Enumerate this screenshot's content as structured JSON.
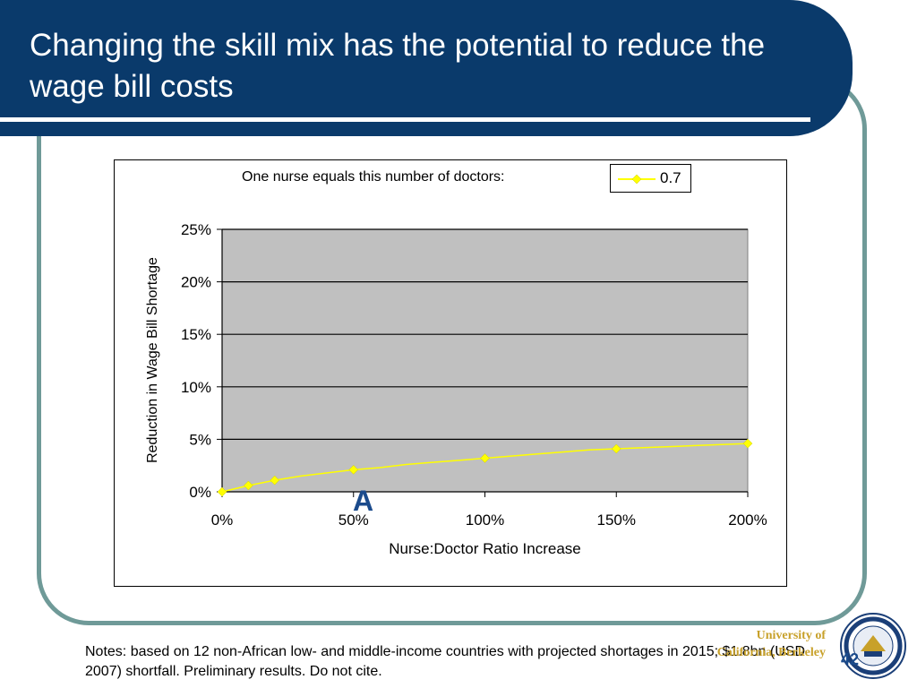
{
  "slide": {
    "title": "Changing the skill mix has the potential to reduce the wage bill costs",
    "notes": "Notes: based on 12 non-African low- and middle-income countries with projected shortages in 2015; $1.8bn (USD 2007) shortfall. Preliminary results. Do not cite.",
    "annotation_letter": "A",
    "page_number": "42",
    "university_name": [
      "University of",
      "California, Berkeley"
    ],
    "colors": {
      "title_bar": "#0a3a6b",
      "frame": "#6f9a98",
      "series": "#ffff00",
      "plot_background": "#c0c0c0",
      "university_text": "#c8a12a"
    }
  },
  "chart_data": {
    "type": "line",
    "legend_caption": "One nurse equals this number of doctors:",
    "legend_placement": "top-right",
    "xlabel": "Nurse:Doctor Ratio Increase",
    "ylabel": "Reduction in Wage Bill Shortage",
    "xlim": [
      0,
      200
    ],
    "ylim": [
      0,
      25
    ],
    "x_ticks": [
      "0%",
      "50%",
      "100%",
      "150%",
      "200%"
    ],
    "x_tick_values": [
      0,
      50,
      100,
      150,
      200
    ],
    "y_ticks": [
      "0%",
      "5%",
      "10%",
      "15%",
      "20%",
      "25%"
    ],
    "y_tick_values": [
      0,
      5,
      10,
      15,
      20,
      25
    ],
    "grid": true,
    "series": [
      {
        "name": "0.7",
        "color": "#ffff00",
        "x": [
          0,
          10,
          20,
          30,
          40,
          50,
          60,
          70,
          80,
          90,
          100,
          110,
          120,
          130,
          140,
          150,
          160,
          170,
          180,
          190,
          200
        ],
        "y": [
          0,
          0.6,
          1.1,
          1.5,
          1.8,
          2.1,
          2.3,
          2.6,
          2.8,
          3.0,
          3.2,
          3.4,
          3.6,
          3.8,
          4.0,
          4.1,
          4.2,
          4.3,
          4.4,
          4.5,
          4.6
        ],
        "marked_x": [
          0,
          10,
          20,
          50,
          100,
          150,
          200
        ]
      }
    ]
  }
}
